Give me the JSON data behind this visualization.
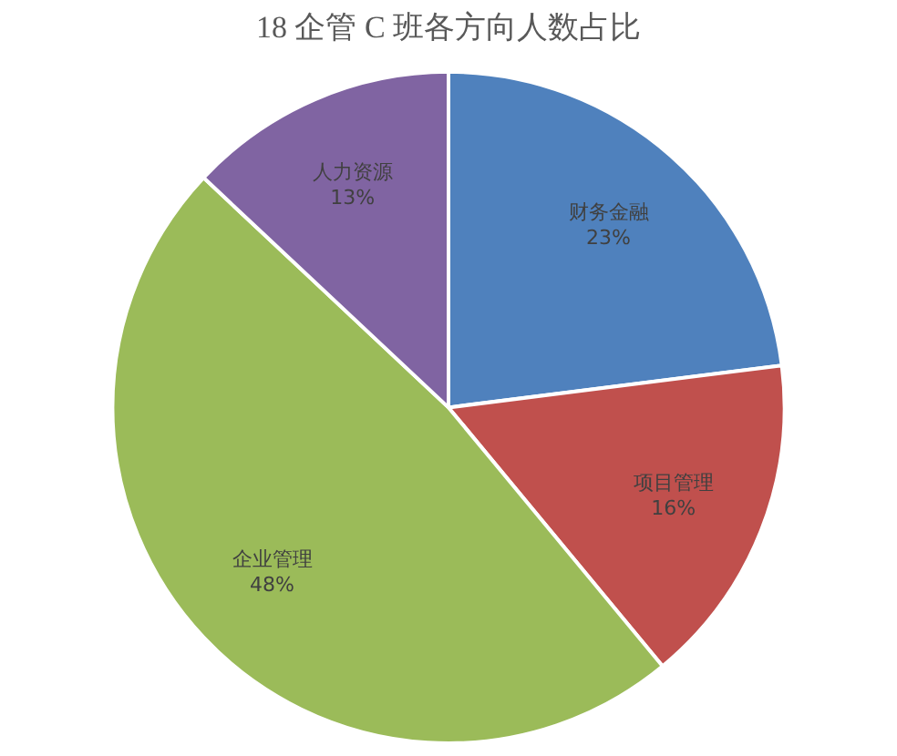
{
  "chart_data": {
    "type": "pie",
    "title": "18 企管 C 班各方向人数占比",
    "categories": [
      "财务金融",
      "项目管理",
      "企业管理",
      "人力资源"
    ],
    "values": [
      23,
      16,
      48,
      13
    ],
    "colors": [
      "#4f81bd",
      "#c0504d",
      "#9bbb59",
      "#8064a2"
    ],
    "value_labels": [
      "23%",
      "16%",
      "48%",
      "13%"
    ],
    "legend": false
  }
}
